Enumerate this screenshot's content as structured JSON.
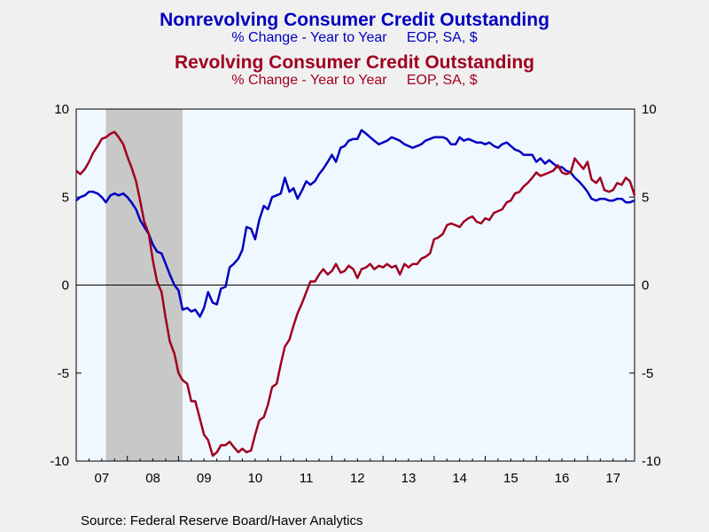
{
  "header": {
    "title1": "Nonrevolving Consumer Credit Outstanding",
    "subtitle1": "% Change - Year to Year     EOP, SA, $",
    "title2": "Revolving Consumer Credit Outstanding",
    "subtitle2": "% Change - Year to Year     EOP, SA, $"
  },
  "source": "Source:  Federal Reserve Board/Haver Analytics",
  "colors": {
    "nonrevolving": "#0000c0",
    "revolving": "#a00020",
    "plot_bg": "#f0f8ff",
    "recession": "#c8c8c8",
    "page_bg": "#f0f0f0"
  },
  "chart_data": {
    "type": "line",
    "title": "Nonrevolving Consumer Credit Outstanding / Revolving Consumer Credit Outstanding",
    "ylabel": "% Change - Year to Year",
    "ylim": [
      -10,
      10
    ],
    "yticks": [
      -10,
      -5,
      0,
      5,
      10
    ],
    "xlim": [
      2007.0,
      2017.92
    ],
    "xtick_labels": [
      "07",
      "08",
      "09",
      "10",
      "11",
      "12",
      "13",
      "14",
      "15",
      "16",
      "17"
    ],
    "recession_shading": [
      [
        2007.58,
        2009.08
      ]
    ],
    "zero_line": true,
    "series": [
      {
        "name": "Nonrevolving Consumer Credit Outstanding",
        "color": "#0000c0",
        "points": [
          [
            2007.0,
            4.8
          ],
          [
            2007.08,
            5.0
          ],
          [
            2007.17,
            5.1
          ],
          [
            2007.25,
            5.3
          ],
          [
            2007.33,
            5.3
          ],
          [
            2007.42,
            5.2
          ],
          [
            2007.5,
            5.0
          ],
          [
            2007.58,
            4.7
          ],
          [
            2007.67,
            5.1
          ],
          [
            2007.75,
            5.2
          ],
          [
            2007.83,
            5.1
          ],
          [
            2007.92,
            5.2
          ],
          [
            2008.0,
            5.0
          ],
          [
            2008.08,
            4.7
          ],
          [
            2008.17,
            4.3
          ],
          [
            2008.25,
            3.7
          ],
          [
            2008.33,
            3.3
          ],
          [
            2008.42,
            2.9
          ],
          [
            2008.5,
            2.3
          ],
          [
            2008.58,
            1.9
          ],
          [
            2008.67,
            1.8
          ],
          [
            2008.75,
            1.2
          ],
          [
            2008.83,
            0.6
          ],
          [
            2008.92,
            0.0
          ],
          [
            2009.0,
            -0.3
          ],
          [
            2009.08,
            -1.4
          ],
          [
            2009.17,
            -1.3
          ],
          [
            2009.25,
            -1.5
          ],
          [
            2009.33,
            -1.4
          ],
          [
            2009.42,
            -1.8
          ],
          [
            2009.5,
            -1.3
          ],
          [
            2009.58,
            -0.4
          ],
          [
            2009.67,
            -1.0
          ],
          [
            2009.75,
            -1.1
          ],
          [
            2009.83,
            -0.2
          ],
          [
            2009.92,
            -0.1
          ],
          [
            2010.0,
            1.0
          ],
          [
            2010.08,
            1.2
          ],
          [
            2010.17,
            1.5
          ],
          [
            2010.25,
            2.0
          ],
          [
            2010.33,
            3.3
          ],
          [
            2010.42,
            3.2
          ],
          [
            2010.5,
            2.6
          ],
          [
            2010.58,
            3.7
          ],
          [
            2010.67,
            4.5
          ],
          [
            2010.75,
            4.3
          ],
          [
            2010.83,
            5.0
          ],
          [
            2010.92,
            5.1
          ],
          [
            2011.0,
            5.2
          ],
          [
            2011.08,
            6.1
          ],
          [
            2011.17,
            5.3
          ],
          [
            2011.25,
            5.5
          ],
          [
            2011.33,
            4.9
          ],
          [
            2011.42,
            5.4
          ],
          [
            2011.5,
            5.9
          ],
          [
            2011.58,
            5.7
          ],
          [
            2011.67,
            5.9
          ],
          [
            2011.75,
            6.3
          ],
          [
            2011.83,
            6.6
          ],
          [
            2011.92,
            7.0
          ],
          [
            2012.0,
            7.4
          ],
          [
            2012.08,
            7.0
          ],
          [
            2012.17,
            7.8
          ],
          [
            2012.25,
            7.9
          ],
          [
            2012.33,
            8.2
          ],
          [
            2012.42,
            8.3
          ],
          [
            2012.5,
            8.3
          ],
          [
            2012.58,
            8.8
          ],
          [
            2012.67,
            8.6
          ],
          [
            2012.75,
            8.4
          ],
          [
            2012.83,
            8.2
          ],
          [
            2012.92,
            8.0
          ],
          [
            2013.0,
            8.1
          ],
          [
            2013.08,
            8.2
          ],
          [
            2013.17,
            8.4
          ],
          [
            2013.25,
            8.3
          ],
          [
            2013.33,
            8.2
          ],
          [
            2013.42,
            8.0
          ],
          [
            2013.5,
            7.9
          ],
          [
            2013.58,
            7.8
          ],
          [
            2013.67,
            7.9
          ],
          [
            2013.75,
            8.0
          ],
          [
            2013.83,
            8.2
          ],
          [
            2013.92,
            8.3
          ],
          [
            2014.0,
            8.4
          ],
          [
            2014.08,
            8.4
          ],
          [
            2014.17,
            8.4
          ],
          [
            2014.25,
            8.3
          ],
          [
            2014.33,
            8.0
          ],
          [
            2014.42,
            8.0
          ],
          [
            2014.5,
            8.4
          ],
          [
            2014.58,
            8.2
          ],
          [
            2014.67,
            8.3
          ],
          [
            2014.75,
            8.2
          ],
          [
            2014.83,
            8.1
          ],
          [
            2014.92,
            8.1
          ],
          [
            2015.0,
            8.0
          ],
          [
            2015.08,
            8.1
          ],
          [
            2015.17,
            7.9
          ],
          [
            2015.25,
            7.8
          ],
          [
            2015.33,
            8.0
          ],
          [
            2015.42,
            8.1
          ],
          [
            2015.5,
            7.9
          ],
          [
            2015.58,
            7.7
          ],
          [
            2015.67,
            7.6
          ],
          [
            2015.75,
            7.4
          ],
          [
            2015.83,
            7.4
          ],
          [
            2015.92,
            7.4
          ],
          [
            2016.0,
            7.0
          ],
          [
            2016.08,
            7.2
          ],
          [
            2016.17,
            6.9
          ],
          [
            2016.25,
            7.1
          ],
          [
            2016.33,
            6.9
          ],
          [
            2016.42,
            6.7
          ],
          [
            2016.5,
            6.7
          ],
          [
            2016.58,
            6.5
          ],
          [
            2016.67,
            6.4
          ],
          [
            2016.75,
            6.1
          ],
          [
            2016.83,
            5.9
          ],
          [
            2016.92,
            5.6
          ],
          [
            2017.0,
            5.3
          ],
          [
            2017.08,
            4.9
          ],
          [
            2017.17,
            4.8
          ],
          [
            2017.25,
            4.9
          ],
          [
            2017.33,
            4.9
          ],
          [
            2017.42,
            4.8
          ],
          [
            2017.5,
            4.8
          ],
          [
            2017.58,
            4.9
          ],
          [
            2017.67,
            4.9
          ],
          [
            2017.75,
            4.7
          ],
          [
            2017.83,
            4.7
          ],
          [
            2017.92,
            4.8
          ]
        ]
      },
      {
        "name": "Revolving Consumer Credit Outstanding",
        "color": "#a00020",
        "points": [
          [
            2007.0,
            6.5
          ],
          [
            2007.08,
            6.3
          ],
          [
            2007.17,
            6.6
          ],
          [
            2007.25,
            7.0
          ],
          [
            2007.33,
            7.5
          ],
          [
            2007.42,
            7.9
          ],
          [
            2007.5,
            8.3
          ],
          [
            2007.58,
            8.4
          ],
          [
            2007.67,
            8.6
          ],
          [
            2007.75,
            8.7
          ],
          [
            2007.83,
            8.4
          ],
          [
            2007.92,
            8.0
          ],
          [
            2008.0,
            7.3
          ],
          [
            2008.08,
            6.7
          ],
          [
            2008.17,
            5.9
          ],
          [
            2008.25,
            4.8
          ],
          [
            2008.33,
            3.6
          ],
          [
            2008.42,
            2.9
          ],
          [
            2008.5,
            1.4
          ],
          [
            2008.58,
            0.2
          ],
          [
            2008.67,
            -0.4
          ],
          [
            2008.75,
            -1.9
          ],
          [
            2008.83,
            -3.2
          ],
          [
            2008.92,
            -3.9
          ],
          [
            2009.0,
            -5.0
          ],
          [
            2009.08,
            -5.4
          ],
          [
            2009.17,
            -5.6
          ],
          [
            2009.25,
            -6.6
          ],
          [
            2009.33,
            -6.6
          ],
          [
            2009.42,
            -7.6
          ],
          [
            2009.5,
            -8.5
          ],
          [
            2009.58,
            -8.8
          ],
          [
            2009.67,
            -9.7
          ],
          [
            2009.75,
            -9.5
          ],
          [
            2009.83,
            -9.1
          ],
          [
            2009.92,
            -9.1
          ],
          [
            2010.0,
            -8.9
          ],
          [
            2010.08,
            -9.2
          ],
          [
            2010.17,
            -9.5
          ],
          [
            2010.25,
            -9.3
          ],
          [
            2010.33,
            -9.5
          ],
          [
            2010.42,
            -9.4
          ],
          [
            2010.5,
            -8.5
          ],
          [
            2010.58,
            -7.7
          ],
          [
            2010.67,
            -7.5
          ],
          [
            2010.75,
            -6.8
          ],
          [
            2010.83,
            -5.8
          ],
          [
            2010.92,
            -5.6
          ],
          [
            2011.0,
            -4.5
          ],
          [
            2011.08,
            -3.5
          ],
          [
            2011.17,
            -3.1
          ],
          [
            2011.25,
            -2.3
          ],
          [
            2011.33,
            -1.6
          ],
          [
            2011.42,
            -1.0
          ],
          [
            2011.5,
            -0.4
          ],
          [
            2011.58,
            0.2
          ],
          [
            2011.67,
            0.2
          ],
          [
            2011.75,
            0.6
          ],
          [
            2011.83,
            0.9
          ],
          [
            2011.92,
            0.6
          ],
          [
            2012.0,
            0.8
          ],
          [
            2012.08,
            1.2
          ],
          [
            2012.17,
            0.7
          ],
          [
            2012.25,
            0.8
          ],
          [
            2012.33,
            1.1
          ],
          [
            2012.42,
            0.9
          ],
          [
            2012.5,
            0.4
          ],
          [
            2012.58,
            0.9
          ],
          [
            2012.67,
            1.0
          ],
          [
            2012.75,
            1.2
          ],
          [
            2012.83,
            0.9
          ],
          [
            2012.92,
            1.1
          ],
          [
            2013.0,
            1.0
          ],
          [
            2013.08,
            1.2
          ],
          [
            2013.17,
            1.0
          ],
          [
            2013.25,
            1.1
          ],
          [
            2013.33,
            0.6
          ],
          [
            2013.42,
            1.2
          ],
          [
            2013.5,
            1.0
          ],
          [
            2013.58,
            1.2
          ],
          [
            2013.67,
            1.2
          ],
          [
            2013.75,
            1.5
          ],
          [
            2013.83,
            1.6
          ],
          [
            2013.92,
            1.8
          ],
          [
            2014.0,
            2.6
          ],
          [
            2014.08,
            2.7
          ],
          [
            2014.17,
            2.9
          ],
          [
            2014.25,
            3.4
          ],
          [
            2014.33,
            3.5
          ],
          [
            2014.42,
            3.4
          ],
          [
            2014.5,
            3.3
          ],
          [
            2014.58,
            3.6
          ],
          [
            2014.67,
            3.8
          ],
          [
            2014.75,
            3.9
          ],
          [
            2014.83,
            3.6
          ],
          [
            2014.92,
            3.5
          ],
          [
            2015.0,
            3.8
          ],
          [
            2015.08,
            3.7
          ],
          [
            2015.17,
            4.1
          ],
          [
            2015.25,
            4.2
          ],
          [
            2015.33,
            4.3
          ],
          [
            2015.42,
            4.7
          ],
          [
            2015.5,
            4.8
          ],
          [
            2015.58,
            5.2
          ],
          [
            2015.67,
            5.3
          ],
          [
            2015.75,
            5.6
          ],
          [
            2015.83,
            5.8
          ],
          [
            2015.92,
            6.1
          ],
          [
            2016.0,
            6.4
          ],
          [
            2016.08,
            6.2
          ],
          [
            2016.17,
            6.3
          ],
          [
            2016.25,
            6.4
          ],
          [
            2016.33,
            6.5
          ],
          [
            2016.42,
            6.8
          ],
          [
            2016.5,
            6.4
          ],
          [
            2016.58,
            6.3
          ],
          [
            2016.67,
            6.4
          ],
          [
            2016.75,
            7.2
          ],
          [
            2016.83,
            6.9
          ],
          [
            2016.92,
            6.6
          ],
          [
            2017.0,
            7.0
          ],
          [
            2017.08,
            6.0
          ],
          [
            2017.17,
            5.8
          ],
          [
            2017.25,
            6.1
          ],
          [
            2017.33,
            5.4
          ],
          [
            2017.42,
            5.3
          ],
          [
            2017.5,
            5.4
          ],
          [
            2017.58,
            5.8
          ],
          [
            2017.67,
            5.7
          ],
          [
            2017.75,
            6.1
          ],
          [
            2017.83,
            5.9
          ],
          [
            2017.92,
            5.1
          ]
        ]
      }
    ]
  }
}
